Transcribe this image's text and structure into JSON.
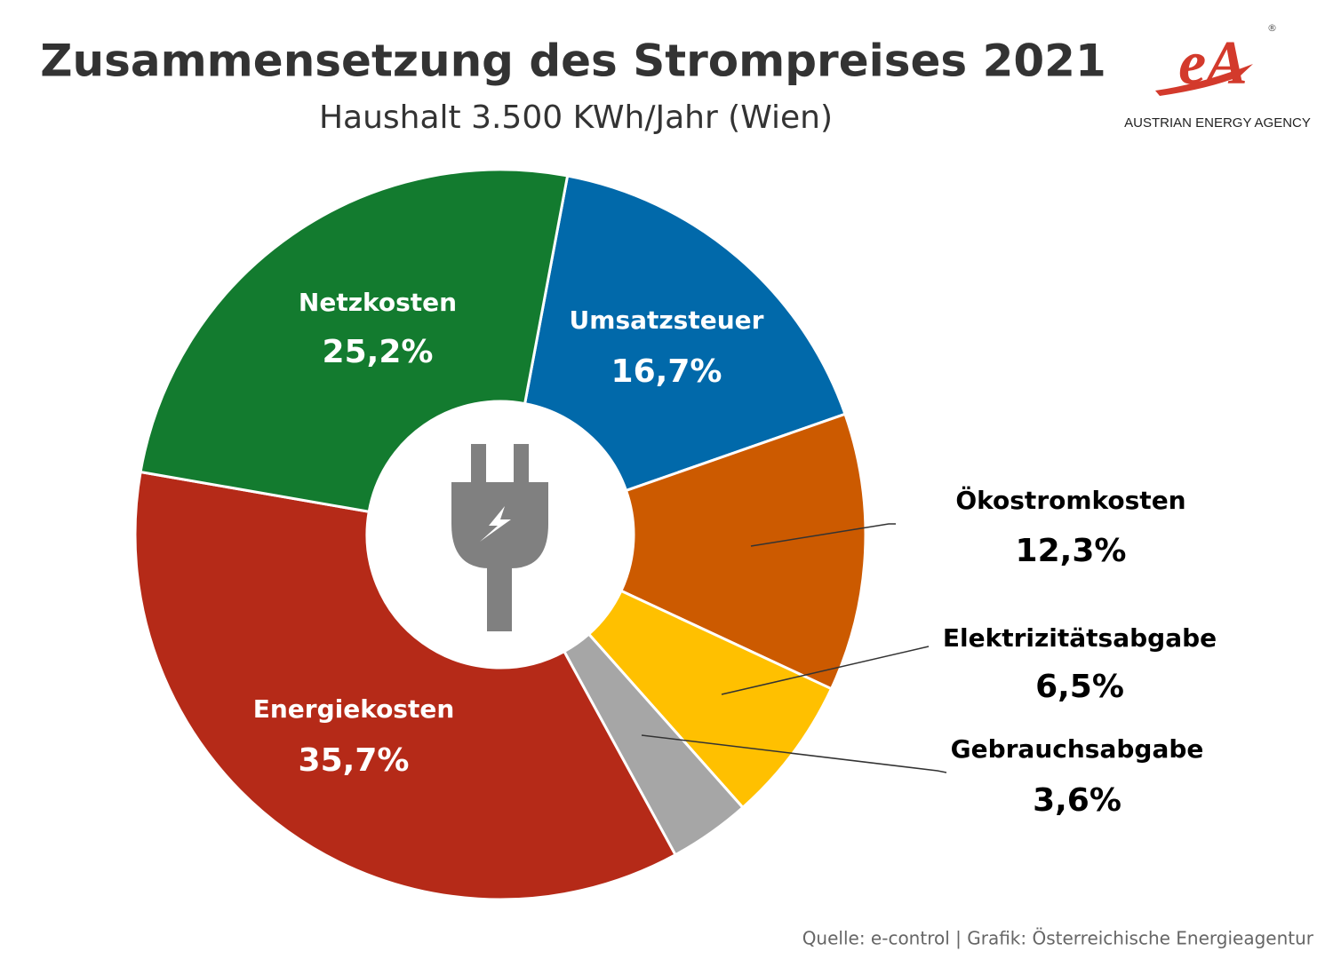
{
  "chart_data": {
    "type": "pie",
    "title": "Zusammensetzung des Strompreises 2021",
    "subtitle": "Haushalt 3.500 KWh/Jahr (Wien)",
    "categories": [
      "Umsatzsteuer",
      "Ökostromkosten",
      "Elektrizitätsabgabe",
      "Gebrauchsabgabe",
      "Energiekosten",
      "Netzkosten"
    ],
    "values": [
      16.7,
      12.3,
      6.5,
      3.6,
      35.7,
      25.2
    ],
    "value_labels": [
      "16,7%",
      "12,3%",
      "6,5%",
      "3,6%",
      "35,7%",
      "25,2%"
    ],
    "colors": [
      "#0169aa",
      "#cc5a00",
      "#ffc000",
      "#a6a6a6",
      "#b52a18",
      "#137b2f"
    ],
    "source": "Quelle: e-control | Grafik: Österreichische Energieagentur"
  },
  "logo": {
    "mark": "®",
    "text": "AUSTRIAN ENERGY AGENCY"
  }
}
